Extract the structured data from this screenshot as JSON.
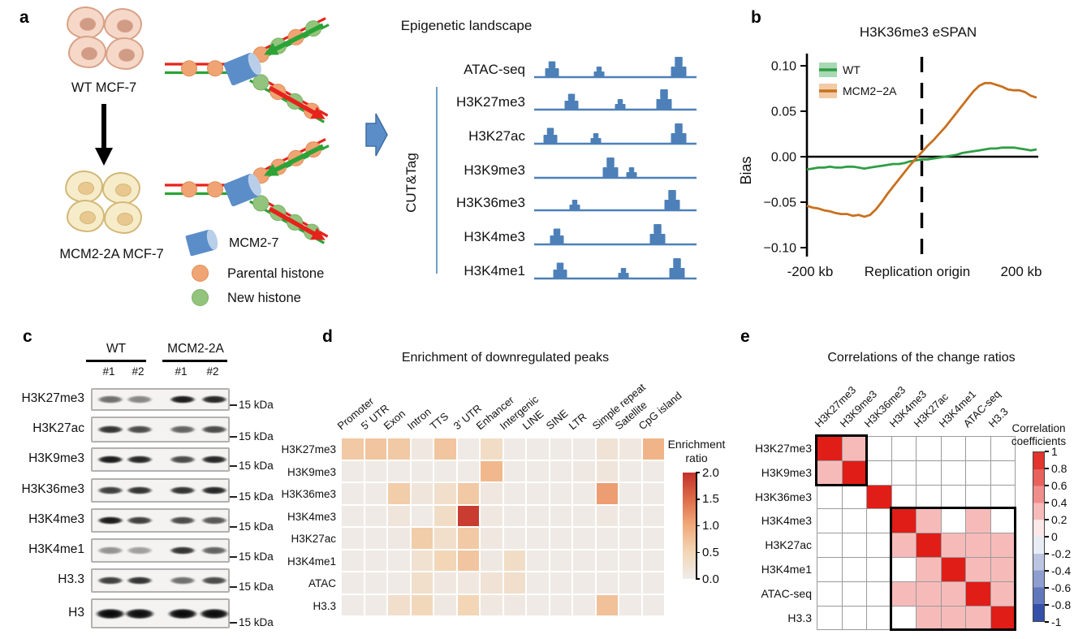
{
  "colors": {
    "strand_red": "#e5231b",
    "strand_green": "#2ba336",
    "parental_histone": "#f0a473",
    "parental_edge": "#dd8f5a",
    "new_histone": "#93c47d",
    "new_edge": "#7cb164",
    "mcm_body": "#5b8dc9",
    "mcm_cap": "#b9cfe9",
    "track_blue": "#4d80b8",
    "flow_arrow": "#5b8dc9",
    "cutntag_line": "#6fa0cb",
    "wt_cell_fill": "#f6d8c8",
    "wt_cell_edge": "#d9a288",
    "wt_nucleus": "#d09c86",
    "mut_cell_fill": "#f7ecc9",
    "mut_cell_edge": "#d2b878",
    "mut_nucleus": "#e9c88f",
    "blot_bg": "#f4f3f2",
    "blot_border": "#b3b1ae",
    "axis_black": "#000000"
  },
  "figure": {
    "panel_a": {
      "label": "a",
      "wt_label": "WT MCF-7",
      "mutant_label": "MCM2-2A MCF-7",
      "legend": {
        "mcm": "MCM2-7",
        "parental": "Parental histone",
        "new_h": "New histone"
      },
      "landscape_title": "Epigenetic landscape",
      "cutntag": "CUT&Tag",
      "tracks": [
        {
          "name": "ATAC-seq",
          "peaks": [
            [
              0.11,
              "m"
            ],
            [
              0.4,
              "s"
            ],
            [
              0.89,
              "l"
            ]
          ]
        },
        {
          "name": "H3K27me3",
          "peaks": [
            [
              0.23,
              "m"
            ],
            [
              0.53,
              "s"
            ],
            [
              0.8,
              "l"
            ]
          ]
        },
        {
          "name": "H3K27ac",
          "peaks": [
            [
              0.1,
              "m"
            ],
            [
              0.38,
              "s"
            ],
            [
              0.89,
              "l"
            ]
          ]
        },
        {
          "name": "H3K9me3",
          "peaks": [
            [
              0.47,
              "l"
            ],
            [
              0.6,
              "s"
            ]
          ]
        },
        {
          "name": "H3K36me3",
          "peaks": [
            [
              0.25,
              "s"
            ],
            [
              0.85,
              "l"
            ]
          ]
        },
        {
          "name": "H3K4me3",
          "peaks": [
            [
              0.14,
              "m"
            ],
            [
              0.76,
              "l"
            ]
          ]
        },
        {
          "name": "H3K4me1",
          "peaks": [
            [
              0.16,
              "m"
            ],
            [
              0.55,
              "s"
            ],
            [
              0.88,
              "l"
            ]
          ]
        }
      ],
      "forks": [
        {
          "type": "WT",
          "parent": [
            "p",
            "p"
          ],
          "upper": [
            "p",
            "n",
            "p",
            "n"
          ],
          "lower": [
            "n",
            "p",
            "n",
            "p"
          ]
        },
        {
          "type": "MCM2-2A",
          "parent": [
            "p",
            "p"
          ],
          "upper": [
            "p",
            "p",
            "p",
            "p"
          ],
          "lower": [
            "n",
            "n",
            "n",
            "n"
          ]
        }
      ]
    },
    "panel_b": {
      "label": "b"
    },
    "panel_c": {
      "label": "c",
      "groups": [
        "WT",
        "MCM2-2A"
      ],
      "lanes": [
        "#1",
        "#2",
        "#1",
        "#2"
      ],
      "rows": [
        {
          "name": "H3K27me3",
          "marker": "15 kDa",
          "bands": [
            0.55,
            0.45,
            0.9,
            0.85
          ]
        },
        {
          "name": "H3K27ac",
          "marker": "15 kDa",
          "bands": [
            0.8,
            0.7,
            0.6,
            0.7
          ]
        },
        {
          "name": "H3K9me3",
          "marker": "15 kDa",
          "bands": [
            0.9,
            0.85,
            0.7,
            0.85
          ]
        },
        {
          "name": "H3K36me3",
          "marker": "15 kDa",
          "bands": [
            0.75,
            0.8,
            0.8,
            0.85
          ]
        },
        {
          "name": "H3K4me3",
          "marker": "15 kDa",
          "bands": [
            0.9,
            0.75,
            0.7,
            0.65
          ]
        },
        {
          "name": "H3K4me1",
          "marker": "15 kDa",
          "bands": [
            0.4,
            0.35,
            0.8,
            0.6
          ]
        },
        {
          "name": "H3.3",
          "marker": "15 kDa",
          "bands": [
            0.75,
            0.8,
            0.55,
            0.7
          ]
        },
        {
          "name": "H3",
          "marker": "15 kDa",
          "bands": [
            0.97,
            0.95,
            0.97,
            0.96
          ]
        }
      ]
    },
    "panel_d": {
      "label": "d"
    },
    "panel_e": {
      "label": "e"
    }
  },
  "chart_data": [
    {
      "type": "line",
      "title": "H3K36me3 eSPAN",
      "ylabel": "Bias",
      "xlabel_left": "-200 kb",
      "xlabel_center": "Replication origin",
      "xlabel_right": "200 kb",
      "ylim": [
        -0.1,
        0.1
      ],
      "xlim_kb": [
        -200,
        200
      ],
      "yticks": [
        0.1,
        0.05,
        0.0,
        -0.05,
        -0.1
      ],
      "ytick_labels": [
        "0.10",
        "0.05",
        "0.00",
        "−0.05",
        "−0.10"
      ],
      "legend_position": "top-left",
      "x": [
        -200,
        -190,
        -180,
        -170,
        -160,
        -150,
        -140,
        -130,
        -120,
        -110,
        -100,
        -90,
        -80,
        -70,
        -60,
        -50,
        -40,
        -30,
        -20,
        -10,
        0,
        10,
        20,
        30,
        40,
        50,
        60,
        70,
        80,
        90,
        100,
        110,
        120,
        130,
        140,
        150,
        160,
        170,
        180,
        190,
        200
      ],
      "series": [
        {
          "name": "WT",
          "color": "#2f9e45",
          "band_color": "#a9d8b4",
          "y": [
            -0.014,
            -0.013,
            -0.012,
            -0.012,
            -0.011,
            -0.012,
            -0.012,
            -0.011,
            -0.011,
            -0.012,
            -0.013,
            -0.012,
            -0.011,
            -0.01,
            -0.009,
            -0.008,
            -0.008,
            -0.007,
            -0.005,
            -0.004,
            -0.003,
            -0.003,
            -0.002,
            -0.001,
            0.0,
            0.001,
            0.002,
            0.004,
            0.005,
            0.006,
            0.007,
            0.008,
            0.009,
            0.009,
            0.01,
            0.01,
            0.01,
            0.009,
            0.008,
            0.007,
            0.008
          ]
        },
        {
          "name": "MCM2−2A",
          "color": "#c8701f",
          "band_color": "#f2cba6",
          "y": [
            -0.054,
            -0.056,
            -0.057,
            -0.059,
            -0.06,
            -0.062,
            -0.063,
            -0.063,
            -0.065,
            -0.064,
            -0.066,
            -0.064,
            -0.058,
            -0.05,
            -0.041,
            -0.033,
            -0.025,
            -0.017,
            -0.009,
            -0.002,
            0.005,
            0.012,
            0.018,
            0.025,
            0.032,
            0.04,
            0.048,
            0.056,
            0.064,
            0.072,
            0.078,
            0.081,
            0.081,
            0.079,
            0.077,
            0.074,
            0.073,
            0.073,
            0.071,
            0.067,
            0.065
          ]
        }
      ]
    },
    {
      "type": "heatmap",
      "title": "Enrichment of downregulated peaks",
      "columns": [
        "Promoter",
        "5' UTR",
        "Exon",
        "Intron",
        "TTS",
        "3' UTR",
        "Enhancer",
        "Intergenic",
        "LINE",
        "SINE",
        "LTR",
        "Simple repeat",
        "Satellite",
        "CpG island"
      ],
      "rows": [
        "H3K27me3",
        "H3K9me3",
        "H3K36me3",
        "H3K4me3",
        "H3K27ac",
        "H3K4me1",
        "ATAC",
        "H3.3"
      ],
      "values": [
        [
          0.65,
          0.7,
          0.65,
          0.1,
          0.7,
          0.05,
          0.35,
          0.05,
          0.05,
          0.05,
          0.05,
          0.2,
          0.1,
          0.9
        ],
        [
          0.05,
          0.05,
          0.05,
          0.05,
          0.05,
          0.05,
          0.85,
          0.05,
          0.05,
          0.05,
          0.08,
          0.15,
          0.05,
          0.05
        ],
        [
          0.05,
          0.05,
          0.6,
          0.15,
          0.3,
          0.65,
          0.1,
          0.05,
          0.05,
          0.05,
          0.05,
          1.1,
          0.05,
          0.05
        ],
        [
          0.05,
          0.05,
          0.15,
          0.05,
          0.35,
          1.9,
          0.1,
          0.05,
          0.05,
          0.05,
          0.05,
          0.1,
          0.05,
          0.05
        ],
        [
          0.05,
          0.05,
          0.08,
          0.6,
          0.3,
          0.65,
          0.1,
          0.05,
          0.05,
          0.05,
          0.05,
          0.05,
          0.05,
          0.05
        ],
        [
          0.05,
          0.05,
          0.05,
          0.25,
          0.5,
          0.7,
          0.08,
          0.35,
          0.05,
          0.05,
          0.05,
          0.05,
          0.05,
          0.05
        ],
        [
          0.05,
          0.05,
          0.05,
          0.3,
          0.1,
          0.1,
          0.2,
          0.3,
          0.05,
          0.05,
          0.05,
          0.05,
          0.05,
          0.05
        ],
        [
          0.05,
          0.05,
          0.3,
          0.45,
          0.08,
          0.5,
          0.1,
          0.08,
          0.05,
          0.05,
          0.05,
          0.75,
          0.05,
          0.05
        ]
      ],
      "colorbar": {
        "title": [
          "Enrichment",
          "ratio"
        ],
        "tick_labels": [
          "2.0",
          "1.5",
          "1.0",
          "0.5",
          "0.0"
        ],
        "ticks": [
          2.0,
          1.5,
          1.0,
          0.5,
          0.0
        ],
        "range": [
          0,
          2
        ]
      },
      "color_stops": [
        [
          0,
          "#efecea"
        ],
        [
          0.5,
          "#f2d6b6"
        ],
        [
          1,
          "#f0ab7c"
        ],
        [
          1.5,
          "#de6c49"
        ],
        [
          2,
          "#c23128"
        ]
      ]
    },
    {
      "type": "heatmap",
      "title": "Correlations of the change ratios",
      "labels": [
        "H3K27me3",
        "H3K9me3",
        "H3K36me3",
        "H3K4me3",
        "H3K27ac",
        "H3K4me1",
        "ATAC-seq",
        "H3.3"
      ],
      "matrix": [
        [
          1,
          0.3,
          0,
          0,
          0,
          0,
          0,
          0
        ],
        [
          0.3,
          1,
          0,
          0,
          0,
          0,
          0,
          0
        ],
        [
          0,
          0,
          1,
          0,
          0,
          0,
          0,
          0
        ],
        [
          0,
          0,
          0,
          1,
          0.3,
          0,
          0.3,
          0
        ],
        [
          0,
          0,
          0,
          0.3,
          1,
          0.3,
          0.3,
          0.3
        ],
        [
          0,
          0,
          0,
          0,
          0.3,
          1,
          0.3,
          0.3
        ],
        [
          0,
          0,
          0,
          0.3,
          0.3,
          0.3,
          1,
          0.3
        ],
        [
          0,
          0,
          0,
          0,
          0.3,
          0.3,
          0.3,
          1
        ]
      ],
      "highlight_blocks": [
        {
          "start": 0,
          "end": 1
        },
        {
          "start": 3,
          "end": 7
        }
      ],
      "colorbar": {
        "title": [
          "Correlation",
          "coefficients"
        ],
        "tick_labels": [
          "1",
          "0.8",
          "0.6",
          "0.4",
          "0.2",
          "0",
          "-0.2",
          "-0.4",
          "-0.6",
          "-0.8",
          "-1"
        ],
        "range": [
          -1,
          1
        ]
      },
      "pos_color": "#e01d17",
      "neg_color": "#1d3d9e"
    }
  ]
}
